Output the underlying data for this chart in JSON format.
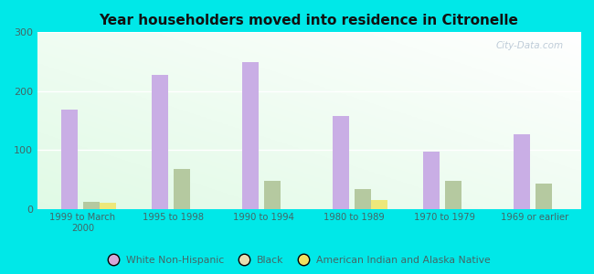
{
  "title": "Year householders moved into residence in Citronelle",
  "categories": [
    "1999 to March\n2000",
    "1995 to 1998",
    "1990 to 1994",
    "1980 to 1989",
    "1970 to 1979",
    "1969 or earlier"
  ],
  "white_non_hispanic": [
    168,
    228,
    250,
    157,
    97,
    127
  ],
  "black": [
    12,
    67,
    47,
    33,
    47,
    42
  ],
  "american_indian": [
    10,
    0,
    0,
    15,
    0,
    0
  ],
  "colors": {
    "white_non_hispanic": "#c9aee5",
    "black": "#b5c9a0",
    "american_indian": "#ede87a"
  },
  "legend_colors": {
    "white_non_hispanic": "#d4a8d8",
    "black": "#e8ddb0",
    "american_indian": "#f0e060"
  },
  "background_color": "#00e8e8",
  "ylim": [
    0,
    300
  ],
  "yticks": [
    0,
    100,
    200,
    300
  ],
  "legend_labels": [
    "White Non-Hispanic",
    "Black",
    "American Indian and Alaska Native"
  ],
  "watermark": "City-Data.com",
  "bar_width": 0.18
}
